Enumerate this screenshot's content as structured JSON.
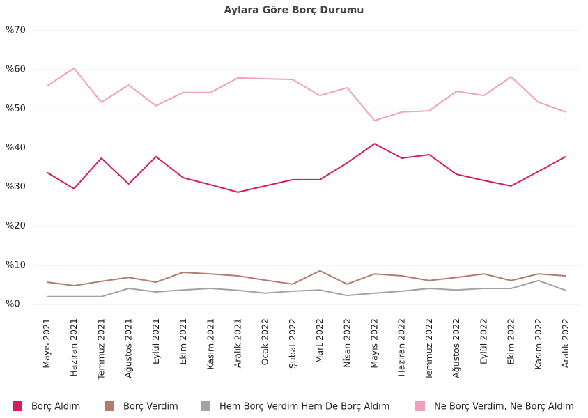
{
  "chart_data": {
    "type": "line",
    "title": "Aylara Göre Borç Durumu",
    "categories": [
      "Mayıs 2021",
      "Haziran 2021",
      "Temmuz 2021",
      "Ağustos 2021",
      "Eylül 2021",
      "Ekim 2021",
      "Kasım 2021",
      "Aralık 2021",
      "Ocak 2022",
      "Şubat 2022",
      "Mart 2022",
      "Nisan 2022",
      "Mayıs 2022",
      "Haziran 2022",
      "Temmuz 2022",
      "Ağustos 2022",
      "Eylül 2022",
      "Ekim 2022",
      "Kasım 2022",
      "Aralık 2022"
    ],
    "series": [
      {
        "name": "Borç Aldım",
        "color": "#d81b60",
        "values": [
          33.8,
          29.6,
          37.4,
          30.8,
          37.8,
          32.4,
          30.6,
          28.7,
          30.3,
          31.9,
          31.9,
          36.2,
          41.1,
          37.4,
          38.3,
          33.3,
          31.7,
          30.3,
          34.0,
          37.8
        ]
      },
      {
        "name": "Borç Verdim",
        "color": "#b47a70",
        "values": [
          5.7,
          4.8,
          5.9,
          6.9,
          5.7,
          8.2,
          7.8,
          7.3,
          6.2,
          5.2,
          8.6,
          5.2,
          7.8,
          7.3,
          6.1,
          6.9,
          7.8,
          6.1,
          7.8,
          7.3
        ]
      },
      {
        "name": "Hem Borç Verdim Hem De Borç Aldım",
        "color": "#a3a3a3",
        "values": [
          2.0,
          2.0,
          2.0,
          4.1,
          3.2,
          3.7,
          4.1,
          3.6,
          2.9,
          3.4,
          3.7,
          2.3,
          2.9,
          3.4,
          4.1,
          3.7,
          4.1,
          4.1,
          6.1,
          3.6
        ]
      },
      {
        "name": "Ne Borç Verdim, Ne Borç Aldım",
        "color": "#f2a0b5",
        "values": [
          55.8,
          60.4,
          51.7,
          56.1,
          50.8,
          54.2,
          54.2,
          57.9,
          57.7,
          57.5,
          53.4,
          55.4,
          47.0,
          49.2,
          49.5,
          54.5,
          53.4,
          58.2,
          51.7,
          49.2
        ]
      }
    ],
    "ylim": [
      0,
      70
    ],
    "yticks": [
      {
        "value": 0,
        "label": "%0"
      },
      {
        "value": 10,
        "label": "%10"
      },
      {
        "value": 20,
        "label": "%20"
      },
      {
        "value": 30,
        "label": "%30"
      },
      {
        "value": 40,
        "label": "%40"
      },
      {
        "value": 50,
        "label": "%50"
      },
      {
        "value": 60,
        "label": "%60"
      },
      {
        "value": 70,
        "label": "%70"
      }
    ],
    "grid": true,
    "legend": "bottom"
  }
}
